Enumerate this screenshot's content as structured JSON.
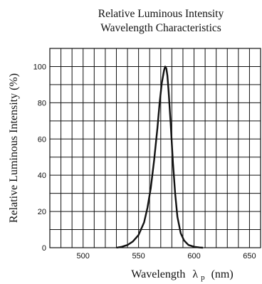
{
  "chart_data": {
    "type": "line",
    "title_line1": "Relative Luminous Intensity",
    "title_line2": "Wavelength Characteristics",
    "xlabel": "Wavelength",
    "xlabel_symbol": "λ",
    "xlabel_subscript": "p",
    "xlabel_unit": "(nm)",
    "ylabel": "Relative Luminous Intensity (%)",
    "xlim": [
      470,
      660
    ],
    "ylim": [
      0,
      110
    ],
    "x_tick_labels": [
      "500",
      "550",
      "600",
      "650"
    ],
    "x_ticks": [
      500,
      550,
      600,
      650
    ],
    "y_tick_labels": [
      "0",
      "20",
      "40",
      "60",
      "80",
      "100"
    ],
    "y_ticks": [
      0,
      20,
      40,
      60,
      80,
      100
    ],
    "grid": true,
    "grid_x_step": 10,
    "grid_y_step": 10,
    "series": [
      {
        "name": "",
        "x": [
          530,
          535,
          540,
          545,
          550,
          555,
          558,
          561,
          564,
          567,
          569,
          571,
          573,
          574,
          575,
          576,
          577,
          579,
          581,
          583,
          585,
          588,
          591,
          595,
          600,
          605,
          608
        ],
        "y": [
          0,
          0.5,
          1.5,
          3.5,
          7,
          14,
          22,
          33,
          48,
          66,
          80,
          91,
          98,
          100,
          99,
          95,
          87,
          68,
          47,
          30,
          17,
          8,
          4,
          1.5,
          0.5,
          0.1,
          0
        ]
      }
    ]
  }
}
